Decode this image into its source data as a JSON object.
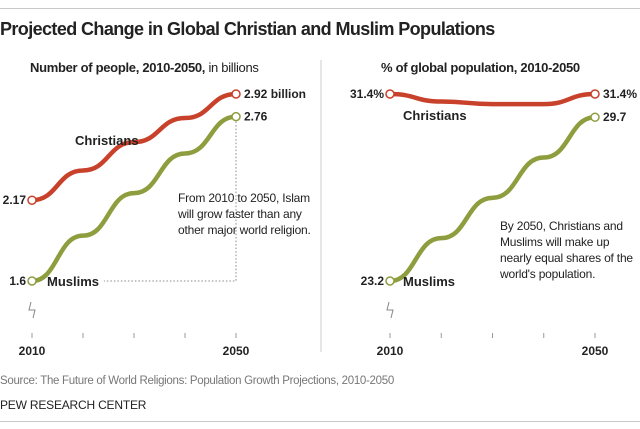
{
  "title": "Projected Change in Global Christian and Muslim Populations",
  "source": "Source: The Future of World Religions: Population Growth Projections, 2010-2050",
  "org": "PEW RESEARCH CENTER",
  "colors": {
    "christians": "#c8412b",
    "muslims": "#8e9d3e"
  },
  "chart_data": [
    {
      "type": "line",
      "title": "Number of people, 2010-2050,",
      "title_suffix": "in billions",
      "x": [
        2010,
        2020,
        2030,
        2040,
        2050
      ],
      "x_tick_labels": [
        "2010",
        "2050"
      ],
      "series": [
        {
          "name": "Christians",
          "values": [
            2.17,
            2.38,
            2.58,
            2.75,
            2.92
          ],
          "start_label": "2.17",
          "end_label": "2.92 billion"
        },
        {
          "name": "Muslims",
          "values": [
            1.6,
            1.92,
            2.22,
            2.5,
            2.76
          ],
          "start_label": "1.6",
          "end_label": "2.76"
        }
      ],
      "annotation": "From 2010 to 2050, Islam will grow faster than any other major world religion.",
      "axis_break": true
    },
    {
      "type": "line",
      "title": "% of global population, 2010-2050",
      "x": [
        2010,
        2020,
        2030,
        2040,
        2050
      ],
      "x_tick_labels": [
        "2010",
        "2050"
      ],
      "series": [
        {
          "name": "Christians",
          "values": [
            31.4,
            31.1,
            31.0,
            31.0,
            31.4
          ],
          "start_label": "31.4%",
          "end_label": "31.4%"
        },
        {
          "name": "Muslims",
          "values": [
            23.2,
            24.9,
            26.5,
            28.1,
            29.7
          ],
          "start_label": "23.2",
          "end_label": "29.7"
        }
      ],
      "annotation": "By 2050, Christians and Muslims will make up nearly equal shares of the world's population.",
      "axis_break": true
    }
  ]
}
